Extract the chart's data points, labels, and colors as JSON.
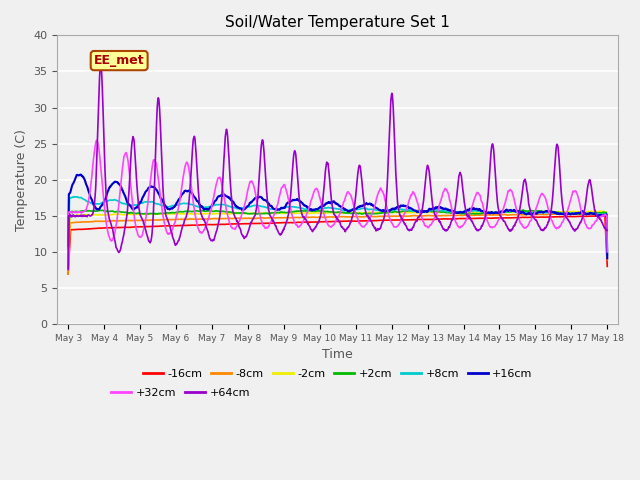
{
  "title": "Soil/Water Temperature Set 1",
  "xlabel": "Time",
  "ylabel": "Temperature (C)",
  "ylim": [
    0,
    40
  ],
  "yticks": [
    0,
    5,
    10,
    15,
    20,
    25,
    30,
    35,
    40
  ],
  "x_labels": [
    "May 3",
    "May 4",
    "May 5",
    "May 6",
    "May 7",
    "May 8",
    "May 9",
    "May 10",
    "May 11",
    "May 12",
    "May 13",
    "May 14",
    "May 15",
    "May 16",
    "May 17",
    "May 18"
  ],
  "fig_bg": "#f0f0f0",
  "plot_bg": "#f0f0f0",
  "grid_color": "#ffffff",
  "series_order": [
    "-16cm",
    "-8cm",
    "-2cm",
    "+2cm",
    "+8cm",
    "+16cm",
    "+32cm",
    "+64cm"
  ],
  "series": {
    "-16cm": {
      "color": "#ff0000",
      "lw": 1.2
    },
    "-8cm": {
      "color": "#ff8800",
      "lw": 1.2
    },
    "-2cm": {
      "color": "#eeee00",
      "lw": 1.2
    },
    "+2cm": {
      "color": "#00bb00",
      "lw": 1.2
    },
    "+8cm": {
      "color": "#00cccc",
      "lw": 1.2
    },
    "+16cm": {
      "color": "#0000cc",
      "lw": 1.5
    },
    "+32cm": {
      "color": "#ff44ff",
      "lw": 1.2
    },
    "+64cm": {
      "color": "#9900cc",
      "lw": 1.2
    }
  },
  "legend_row1": [
    "-16cm",
    "-8cm",
    "-2cm",
    "+2cm",
    "+8cm",
    "+16cm"
  ],
  "legend_row2": [
    "+32cm",
    "+64cm"
  ],
  "watermark": "EE_met",
  "watermark_color": "#aa0000",
  "watermark_bg": "#ffff99",
  "watermark_border": "#aa4400"
}
